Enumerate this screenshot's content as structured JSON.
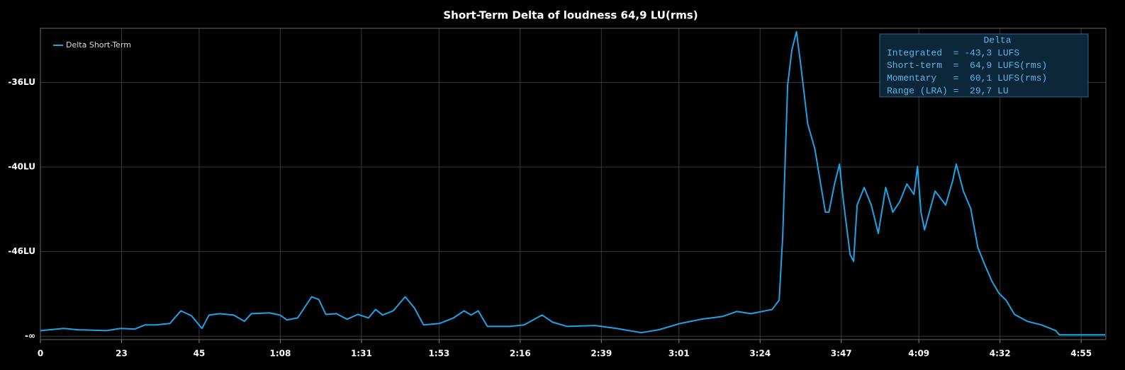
{
  "chart_data": {
    "type": "line",
    "title": "Short-Term Delta of loudness 64,9 LU(rms)",
    "x": [
      0,
      6.6,
      10.6,
      18.7,
      22.7,
      26.7,
      29.7,
      32.7,
      36.7,
      39.8,
      42.8,
      45.8,
      47.8,
      50.8,
      54.8,
      57.8,
      59.8,
      64.9,
      67.9,
      69.9,
      72.9,
      76.9,
      78.9,
      80.9,
      83.9,
      86.9,
      90,
      93,
      95,
      97,
      100,
      103.4,
      106,
      108.6,
      113.1,
      117.1,
      120.1,
      122.1,
      124.1,
      126.7,
      133.1,
      137.1,
      142.2,
      145.2,
      149.2,
      157.2,
      163.3,
      170.3,
      175.3,
      181.3,
      187.3,
      193.4,
      197.4,
      201.4,
      207.4,
      209.4,
      210.4,
      211.8,
      213,
      214.3,
      215.5,
      217.5,
      219.5,
      221.5,
      222.5,
      223.5,
      225.1,
      226.5,
      227.5,
      229.5,
      230.5,
      231.5,
      233.5,
      235.5,
      237.5,
      239.6,
      241.6,
      243.6,
      245.6,
      247.6,
      248.6,
      249.6,
      250.6,
      253.6,
      256.6,
      258.6,
      259.6,
      261.6,
      263.7,
      265.7,
      267.7,
      269.7,
      271.7,
      273.7,
      276.1,
      279.7,
      283.7,
      287.8,
      288.8,
      301.8
    ],
    "series": [
      {
        "name": "Delta Short-Term",
        "color": "#1ea3e6",
        "values": [
          0.00033,
          0.00046,
          0.00038,
          0.00033,
          0.00046,
          0.00042,
          0.00067,
          0.00067,
          0.00075,
          0.0015,
          0.00121,
          0.00046,
          0.00125,
          0.00133,
          0.00125,
          0.00088,
          0.00133,
          0.00138,
          0.00125,
          0.00096,
          0.00108,
          0.00233,
          0.00217,
          0.00129,
          0.00133,
          0.001,
          0.00129,
          0.00108,
          0.00158,
          0.00125,
          0.0015,
          0.00233,
          0.00167,
          0.00067,
          0.00075,
          0.00108,
          0.0015,
          0.00125,
          0.0015,
          0.00058,
          0.00058,
          0.00067,
          0.00125,
          0.00083,
          0.00058,
          0.00063,
          0.00046,
          0.00021,
          0.00038,
          0.00075,
          0.001,
          0.00117,
          0.00146,
          0.00133,
          0.00158,
          0.00213,
          0.00588,
          0.01483,
          0.01692,
          0.018,
          0.01608,
          0.01254,
          0.01108,
          0.00858,
          0.00733,
          0.00733,
          0.009,
          0.01017,
          0.00817,
          0.00483,
          0.00442,
          0.00775,
          0.00879,
          0.00775,
          0.00608,
          0.00879,
          0.00733,
          0.00796,
          0.009,
          0.00838,
          0.01004,
          0.00733,
          0.00629,
          0.00858,
          0.00775,
          0.00921,
          0.01017,
          0.00858,
          0.00754,
          0.00525,
          0.00421,
          0.00325,
          0.00254,
          0.00213,
          0.00129,
          0.00088,
          0.00067,
          0.00033,
          8e-05,
          8e-05
        ]
      }
    ],
    "xlim": [
      0,
      302
    ],
    "xticks": [
      0,
      23,
      45,
      {
        "value": 68,
        "label": "1:08"
      },
      {
        "value": 91,
        "label": "1:31"
      },
      {
        "value": 113,
        "label": "1:53"
      },
      {
        "value": 136,
        "label": "2:16"
      },
      {
        "value": 159,
        "label": "2:39"
      },
      {
        "value": 181,
        "label": "3:01"
      },
      {
        "value": 204,
        "label": "3:24"
      },
      {
        "value": 227,
        "label": "3:47"
      },
      {
        "value": 249,
        "label": "4:09"
      },
      {
        "value": 272,
        "label": "4:32"
      },
      {
        "value": 295,
        "label": "4:55"
      }
    ],
    "ylim": [
      -0.0002,
      0.0182
    ],
    "yticks": [
      {
        "value": 0,
        "label": "-∞"
      },
      {
        "value": 0.005,
        "label": "-46LU"
      },
      {
        "value": 0.01,
        "label": "-40LU"
      },
      {
        "value": 0.015,
        "label": "-36LU"
      }
    ],
    "grid": true,
    "legend": "upper left",
    "info_box": {
      "title": "Delta",
      "lines": [
        "Integrated  = -43,3 LUFS",
        "Short-term  =  64,9 LUFS(rms)",
        "Momentary   =  60,1 LUFS(rms)",
        "Range (LRA) =  29,7 LU"
      ]
    }
  }
}
